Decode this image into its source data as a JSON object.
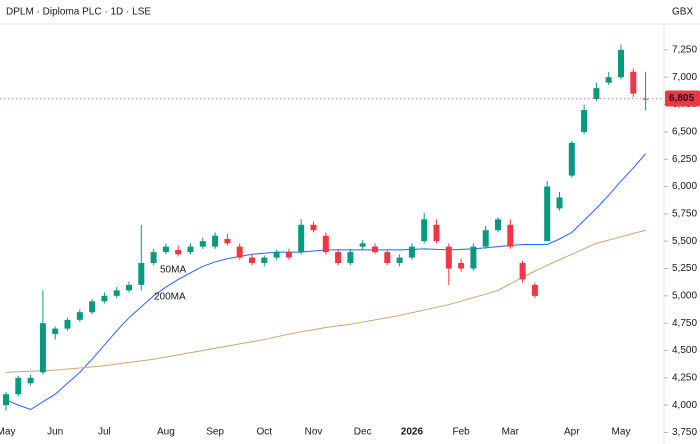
{
  "chart_data": {
    "type": "candlestick",
    "title": "DPLM · Diploma PLC · 1D · LSE",
    "currency": "GBX",
    "categories": [
      "May",
      null,
      null,
      null,
      "Jun",
      null,
      null,
      null,
      "Jul",
      null,
      null,
      null,
      null,
      "Aug",
      null,
      null,
      null,
      "Sep",
      null,
      null,
      null,
      "Oct",
      null,
      null,
      null,
      "Nov",
      null,
      null,
      null,
      "Dec",
      null,
      null,
      null,
      "2026",
      null,
      null,
      null,
      "Feb",
      null,
      null,
      null,
      "Mar",
      null,
      null,
      null,
      null,
      "Apr",
      null,
      null,
      null,
      "May",
      null,
      null
    ],
    "open": [
      4000,
      4100,
      4200,
      4300,
      4650,
      4700,
      4780,
      4850,
      4950,
      5000,
      5050,
      5100,
      5300,
      5400,
      5420,
      5400,
      5450,
      5450,
      5520,
      5450,
      5350,
      5300,
      5350,
      5400,
      5400,
      5650,
      5550,
      5400,
      5300,
      5450,
      5450,
      5400,
      5300,
      5350,
      5500,
      5650,
      5450,
      5300,
      5250,
      5450,
      5600,
      5650,
      5300,
      5100,
      5500,
      5800,
      6100,
      6500,
      6800,
      6950,
      7000,
      7050,
      6800
    ],
    "high": [
      4120,
      4270,
      4280,
      5050,
      4720,
      4800,
      4880,
      4970,
      5030,
      5080,
      5130,
      5650,
      5430,
      5480,
      5460,
      5480,
      5530,
      5580,
      5570,
      5480,
      5380,
      5370,
      5420,
      5430,
      5700,
      5680,
      5580,
      5430,
      5430,
      5510,
      5480,
      5420,
      5380,
      5480,
      5760,
      5700,
      5480,
      5340,
      5480,
      5640,
      5720,
      5700,
      5320,
      5120,
      6050,
      5950,
      6420,
      6750,
      6950,
      7050,
      7300,
      7080,
      7050
    ],
    "low": [
      3950,
      4080,
      4180,
      4280,
      4600,
      4680,
      4760,
      4830,
      4930,
      4980,
      5030,
      5050,
      5280,
      5380,
      5360,
      5380,
      5430,
      5430,
      5460,
      5330,
      5280,
      5270,
      5330,
      5330,
      5380,
      5580,
      5380,
      5280,
      5280,
      5420,
      5380,
      5280,
      5270,
      5330,
      5480,
      5480,
      5100,
      5220,
      5230,
      5430,
      5580,
      5430,
      5120,
      4980,
      5500,
      5780,
      6080,
      6480,
      6780,
      6930,
      6980,
      6820,
      6700
    ],
    "close": [
      4100,
      4250,
      4250,
      4750,
      4700,
      4780,
      4850,
      4950,
      5000,
      5050,
      5100,
      5300,
      5400,
      5450,
      5380,
      5450,
      5500,
      5550,
      5480,
      5350,
      5300,
      5350,
      5400,
      5350,
      5650,
      5600,
      5400,
      5300,
      5400,
      5480,
      5400,
      5300,
      5350,
      5450,
      5700,
      5500,
      5250,
      5250,
      5450,
      5600,
      5700,
      5450,
      5150,
      5000,
      6000,
      5900,
      6400,
      6700,
      6900,
      7000,
      7250,
      6850,
      6805
    ],
    "up_color": "#089981",
    "down_color": "#f23645",
    "series": [
      {
        "name": "50MA",
        "color": "#2962ff",
        "values": [
          4050,
          4000,
          3960,
          4030,
          4100,
          4200,
          4300,
          4420,
          4550,
          4680,
          4800,
          4900,
          5000,
          5080,
          5150,
          5210,
          5270,
          5310,
          5340,
          5360,
          5380,
          5390,
          5400,
          5400,
          5400,
          5410,
          5420,
          5420,
          5420,
          5420,
          5420,
          5420,
          5420,
          5425,
          5430,
          5425,
          5420,
          5425,
          5430,
          5440,
          5450,
          5460,
          5470,
          5470,
          5470,
          5520,
          5580,
          5690,
          5800,
          5920,
          6050,
          6170,
          6300
        ]
      },
      {
        "name": "200MA",
        "color": "#d4a46a",
        "values": [
          4300,
          4305,
          4310,
          4315,
          4320,
          4330,
          4340,
          4350,
          4360,
          4375,
          4390,
          4405,
          4420,
          4440,
          4460,
          4480,
          4500,
          4520,
          4540,
          4560,
          4580,
          4600,
          4625,
          4650,
          4670,
          4690,
          4710,
          4725,
          4740,
          4760,
          4780,
          4800,
          4820,
          4845,
          4870,
          4895,
          4920,
          4950,
          4985,
          5015,
          5050,
          5110,
          5170,
          5225,
          5280,
          5330,
          5380,
          5430,
          5480,
          5510,
          5540,
          5570,
          5600
        ]
      }
    ],
    "last_price": {
      "value": 6805,
      "label": "6,805"
    },
    "ylim": [
      3681,
      7487
    ],
    "yticks": [
      {
        "value": 3750,
        "label": "3,750"
      },
      {
        "value": 4000,
        "label": "4,000"
      },
      {
        "value": 4250,
        "label": "4,250"
      },
      {
        "value": 4500,
        "label": "4,500"
      },
      {
        "value": 4750,
        "label": "4,750"
      },
      {
        "value": 5000,
        "label": "5,000"
      },
      {
        "value": 5250,
        "label": "5,250"
      },
      {
        "value": 5500,
        "label": "5,500"
      },
      {
        "value": 5750,
        "label": "5,750"
      },
      {
        "value": 6000,
        "label": "6,000"
      },
      {
        "value": 6250,
        "label": "6,250"
      },
      {
        "value": 6500,
        "label": "6,500"
      },
      {
        "value": 6750,
        "label": "6,750"
      },
      {
        "value": 7000,
        "label": "7,000"
      },
      {
        "value": 7250,
        "label": "7,250"
      }
    ]
  }
}
